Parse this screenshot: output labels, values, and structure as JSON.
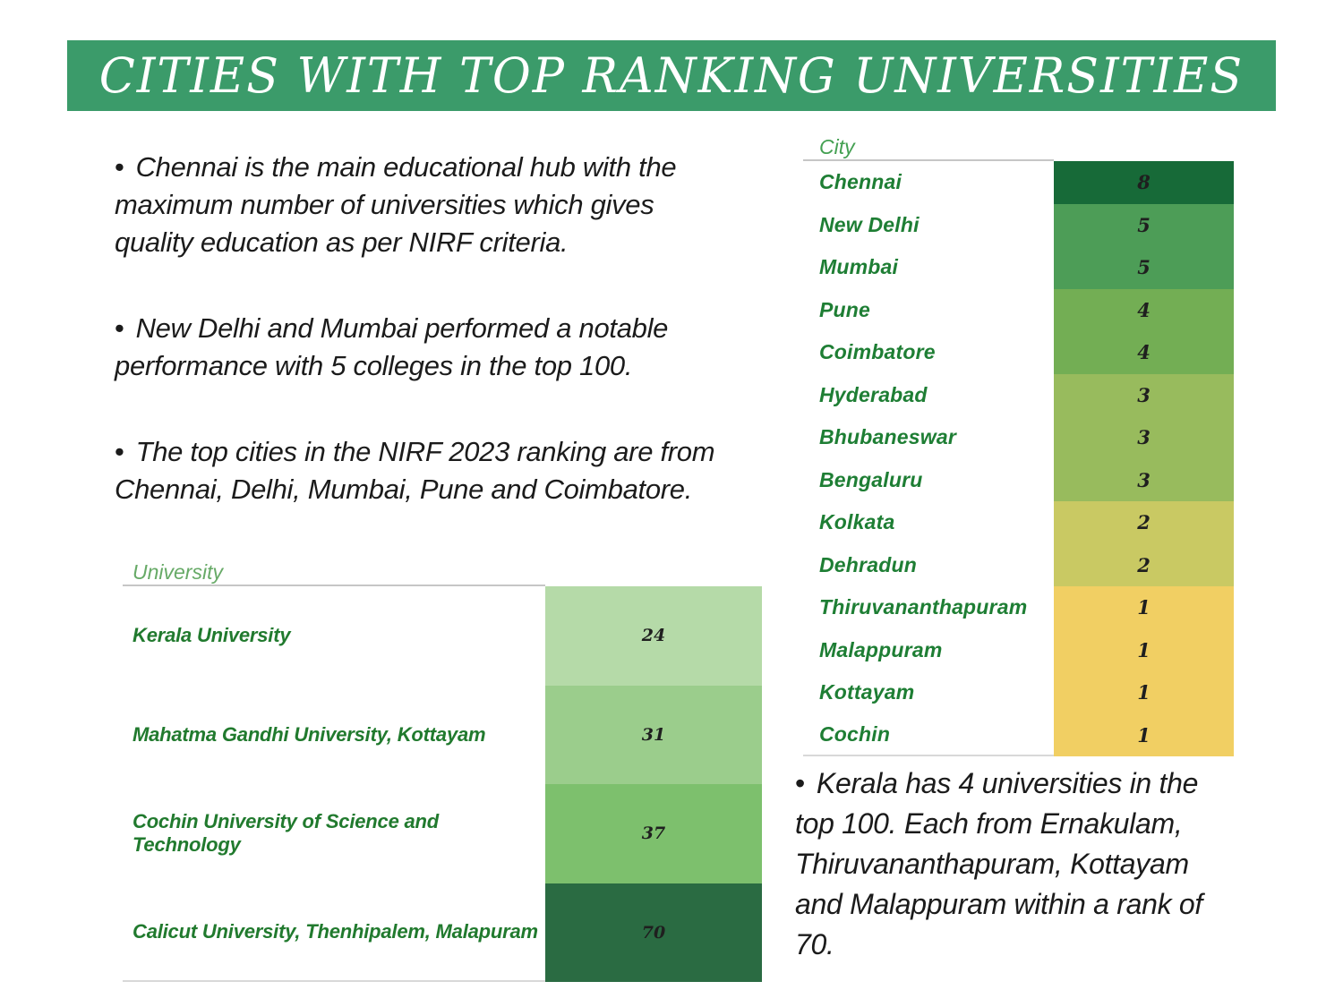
{
  "title": "CITIES WITH TOP RANKING UNIVERSITIES",
  "colors": {
    "banner": "#3b9b6a",
    "title_text": "#ffffff",
    "body_text": "#1b1b1b",
    "city_header": "#44a052",
    "city_label": "#1e7e34",
    "uni_header": "#67aa67",
    "uni_label": "#217a2e",
    "header_underline": "#c6c6c6",
    "cell_number": "#1f1f1f"
  },
  "bullets_left": [
    {
      "lines": [
        "Chennai is the main educational hub with the",
        "maximum number of universities which gives",
        "quality education as per NIRF criteria."
      ]
    },
    {
      "lines": [
        "New Delhi and Mumbai performed a notable",
        "performance with 5 colleges in the top 100."
      ]
    },
    {
      "lines": [
        "The top cities in the NIRF 2023 ranking are from",
        "Chennai, Delhi, Mumbai, Pune and Coimbatore."
      ]
    }
  ],
  "bullet_right": {
    "lines": [
      "Kerala has 4 universities in the",
      "top 100. Each from Ernakulam,",
      "Thiruvananthapuram, Kottayam",
      "and Malappuram within a rank of",
      "70."
    ]
  },
  "city_table": {
    "header": "City",
    "rows": [
      {
        "label": "Chennai",
        "value": "8",
        "color": "#176a38"
      },
      {
        "label": "New Delhi",
        "value": "5",
        "color": "#4d9d57"
      },
      {
        "label": "Mumbai",
        "value": "5",
        "color": "#4d9d57"
      },
      {
        "label": "Pune",
        "value": "4",
        "color": "#73ae54"
      },
      {
        "label": "Coimbatore",
        "value": "4",
        "color": "#73ae54"
      },
      {
        "label": "Hyderabad",
        "value": "3",
        "color": "#98bb5d"
      },
      {
        "label": "Bhubaneswar",
        "value": "3",
        "color": "#98bb5d"
      },
      {
        "label": "Bengaluru",
        "value": "3",
        "color": "#98bb5d"
      },
      {
        "label": "Kolkata",
        "value": "2",
        "color": "#c9c963"
      },
      {
        "label": "Dehradun",
        "value": "2",
        "color": "#c9c963"
      },
      {
        "label": "Thiruvananthapuram",
        "value": "1",
        "color": "#f1cf63"
      },
      {
        "label": "Malappuram",
        "value": "1",
        "color": "#f1cf63"
      },
      {
        "label": "Kottayam",
        "value": "1",
        "color": "#f1cf63"
      },
      {
        "label": "Cochin",
        "value": "1",
        "color": "#f1cf63"
      }
    ]
  },
  "university_table": {
    "header": "University",
    "rows": [
      {
        "label": "Kerala University",
        "value": "24",
        "color": "#b5daa8"
      },
      {
        "label": "Mahatma Gandhi University, Kottayam",
        "value": "31",
        "color": "#9bcd8c"
      },
      {
        "label": "Cochin University of Science and Technology",
        "value": "37",
        "color": "#7dc06d"
      },
      {
        "label": "Calicut University, Thenhipalem, Malapuram",
        "value": "70",
        "color": "#2a6b42"
      }
    ]
  },
  "chart_data": [
    {
      "type": "heatmap",
      "title": "City",
      "categories": [
        "Chennai",
        "New Delhi",
        "Mumbai",
        "Pune",
        "Coimbatore",
        "Hyderabad",
        "Bhubaneswar",
        "Bengaluru",
        "Kolkata",
        "Dehradun",
        "Thiruvananthapuram",
        "Malappuram",
        "Kottayam",
        "Cochin"
      ],
      "values": [
        8,
        5,
        5,
        4,
        4,
        3,
        3,
        3,
        2,
        2,
        1,
        1,
        1,
        1
      ]
    },
    {
      "type": "heatmap",
      "title": "University",
      "categories": [
        "Kerala University",
        "Mahatma Gandhi University, Kottayam",
        "Cochin University of Science and Technology",
        "Calicut University, Thenhipalem, Malapuram"
      ],
      "values": [
        24,
        31,
        37,
        70
      ]
    }
  ]
}
